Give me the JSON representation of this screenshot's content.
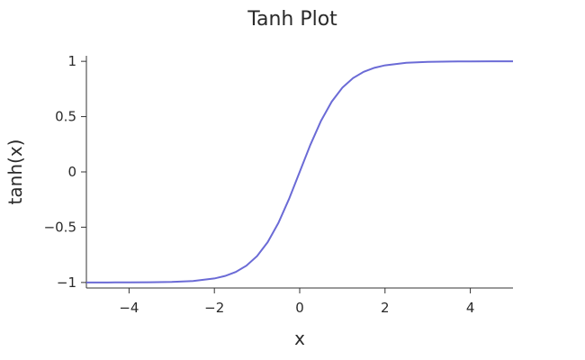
{
  "chart_data": {
    "type": "line",
    "title": "Tanh Plot",
    "xlabel": "x",
    "ylabel": "tanh(x)",
    "xlim": [
      -5,
      5
    ],
    "ylim": [
      -1.05,
      1.05
    ],
    "xticks": [
      -4,
      -2,
      0,
      2,
      4
    ],
    "xtick_labels": [
      "−4",
      "−2",
      "0",
      "2",
      "4"
    ],
    "yticks": [
      -1,
      -0.5,
      0,
      0.5,
      1
    ],
    "ytick_labels": [
      "−1",
      "−0.5",
      "0",
      "0.5",
      "1"
    ],
    "grid": false,
    "series": [
      {
        "color": "#6b6bd6",
        "x": [
          -5,
          -4.5,
          -4,
          -3.5,
          -3,
          -2.5,
          -2,
          -1.75,
          -1.5,
          -1.25,
          -1,
          -0.75,
          -0.5,
          -0.25,
          0,
          0.25,
          0.5,
          0.75,
          1,
          1.25,
          1.5,
          1.75,
          2,
          2.5,
          3,
          3.5,
          4,
          4.5,
          5
        ],
        "y": [
          -0.9999,
          -0.9998,
          -0.9993,
          -0.9982,
          -0.9951,
          -0.9866,
          -0.964,
          -0.9414,
          -0.9051,
          -0.8483,
          -0.7616,
          -0.6351,
          -0.4621,
          -0.2449,
          0,
          0.2449,
          0.4621,
          0.6351,
          0.7616,
          0.8483,
          0.9051,
          0.9414,
          0.964,
          0.9866,
          0.9951,
          0.9982,
          0.9993,
          0.9998,
          0.9999
        ]
      }
    ]
  }
}
